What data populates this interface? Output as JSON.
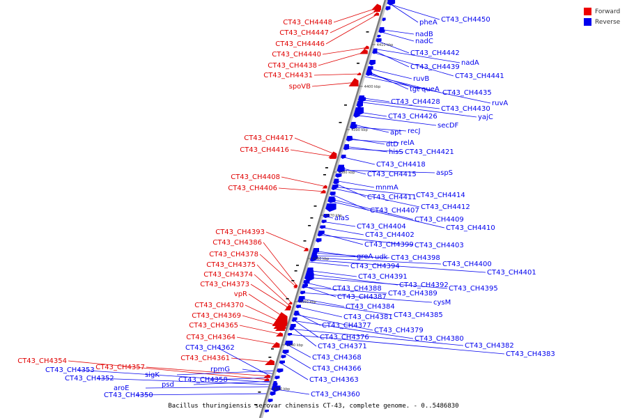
{
  "caption": "Bacillus thuringiensis serovar chinensis CT-43, complete genome. - 0..5486830",
  "legend": [
    {
      "label": "Forward",
      "color": "#ee0000"
    },
    {
      "label": "Reverse",
      "color": "#0000ee"
    }
  ],
  "colors": {
    "forward": "#e00000",
    "reverse": "#0000ee",
    "axis": "#8a8a8a"
  },
  "position_ticks": [
    "4410 kbp",
    "4400 kbp",
    "4390 kbp",
    "4380 kbp",
    "4370 kbp",
    "4360 kbp",
    "4350 kbp",
    "4340 kbp",
    "4330 kbp"
  ],
  "forward_genes": [
    "CT43_CH4448",
    "CT43_CH4447",
    "CT43_CH4446",
    "CT43_CH4440",
    "CT43_CH4438",
    "CT43_CH4431",
    "spoVB",
    "CT43_CH4417",
    "CT43_CH4416",
    "CT43_CH4408",
    "CT43_CH4406",
    "CT43_CH4393",
    "CT43_CH4386",
    "CT43_CH4378",
    "CT43_CH4375",
    "CT43_CH4374",
    "CT43_CH4373",
    "vpR",
    "CT43_CH4370",
    "CT43_CH4369",
    "CT43_CH4365",
    "CT43_CH4364",
    "CT43_CH4361",
    "CT43_CH4357",
    "CT43_CH4354"
  ],
  "reverse_genes": [
    "pheA",
    "CT43_CH4450",
    "nadB",
    "nadC",
    "CT43_CH4442",
    "nadA",
    "CT43_CH4439",
    "CT43_CH4441",
    "ruvB",
    "tgt",
    "queA",
    "CT43_CH4435",
    "ruvA",
    "CT43_CH4428",
    "CT43_CH4430",
    "yajC",
    "CT43_CH4426",
    "secDF",
    "apt",
    "recJ",
    "dtD",
    "relA",
    "hisS",
    "CT43_CH4421",
    "CT43_CH4418",
    "CT43_CH4415",
    "aspS",
    "mnmA",
    "CT43_CH4411",
    "CT43_CH4414",
    "CT43_CH4412",
    "CT43_CH4407",
    "alaS",
    "CT43_CH4409",
    "CT43_CH4410",
    "CT43_CH4404",
    "CT43_CH4402",
    "CT43_CH4399",
    "CT43_CH4403",
    "greA",
    "udk",
    "CT43_CH4398",
    "CT43_CH4394",
    "CT43_CH4400",
    "CT43_CH4401",
    "CT43_CH4391",
    "CT43_CH4392",
    "CT43_CH4388",
    "CT43_CH4395",
    "CT43_CH4387",
    "CT43_CH4389",
    "cysM",
    "CT43_CH4384",
    "CT43_CH4385",
    "CT43_CH4381",
    "CT43_CH4377",
    "CT43_CH4379",
    "CT43_CH4376",
    "CT43_CH4380",
    "CT43_CH4371",
    "CT43_CH4382",
    "CT43_CH4383",
    "CT43_CH4368",
    "CT43_CH4366",
    "sigK",
    "rpmG",
    "CT43_CH4358",
    "CT43_CH4363",
    "psd",
    "CT43_CH4353",
    "CT43_CH4352",
    "aroE",
    "CT43_CH4360",
    "CT43_CH4350",
    "CT43_CH4362"
  ]
}
